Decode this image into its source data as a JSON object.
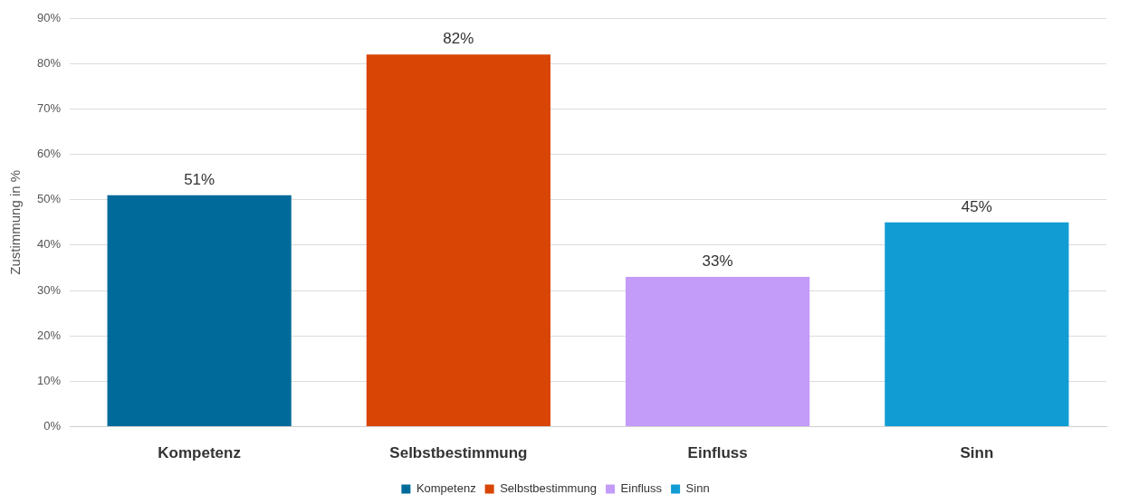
{
  "chart_data": {
    "type": "bar",
    "ylabel": "Zustimmung in %",
    "categories": [
      "Kompetenz",
      "Selbstbestimmung",
      "Einfluss",
      "Sinn"
    ],
    "series": [
      {
        "name": "Kompetenz",
        "color": "#006a9a",
        "values": [
          51,
          null,
          null,
          null
        ],
        "value_labels": [
          "51%",
          null,
          null,
          null
        ]
      },
      {
        "name": "Selbstbestimmung",
        "color": "#d94504",
        "values": [
          null,
          82,
          null,
          null
        ],
        "value_labels": [
          null,
          "82%",
          null,
          null
        ]
      },
      {
        "name": "Einfluss",
        "color": "#c39bf8",
        "values": [
          null,
          null,
          33,
          null
        ],
        "value_labels": [
          null,
          null,
          "33%",
          null
        ]
      },
      {
        "name": "Sinn",
        "color": "#119cd4",
        "values": [
          null,
          null,
          null,
          45
        ],
        "value_labels": [
          null,
          null,
          null,
          "45%"
        ]
      }
    ],
    "ylim": [
      0,
      90
    ],
    "yticks": [
      {
        "value": 0,
        "label": "0%"
      },
      {
        "value": 10,
        "label": "10%"
      },
      {
        "value": 20,
        "label": "20%"
      },
      {
        "value": 30,
        "label": "30%"
      },
      {
        "value": 40,
        "label": "40%"
      },
      {
        "value": 50,
        "label": "50%"
      },
      {
        "value": 60,
        "label": "60%"
      },
      {
        "value": 70,
        "label": "70%"
      },
      {
        "value": 80,
        "label": "80%"
      },
      {
        "value": 90,
        "label": "90%"
      }
    ],
    "grid": "y",
    "legend": "bottom"
  }
}
